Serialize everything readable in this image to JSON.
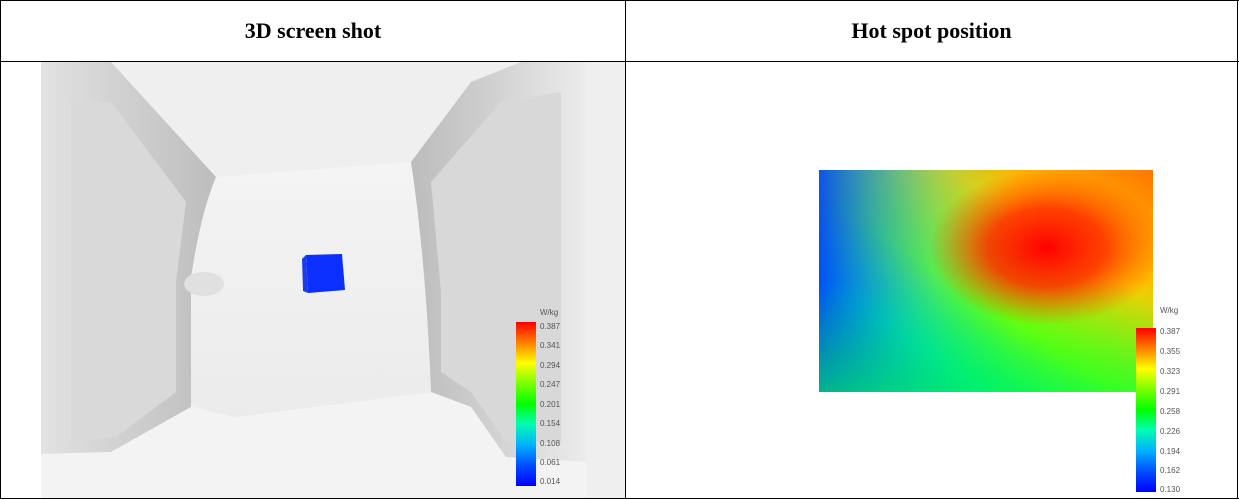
{
  "table": {
    "headers": [
      "3D screen shot",
      "Hot spot position"
    ]
  },
  "left_legend": {
    "unit": "W/kg",
    "ticks": [
      "0.387",
      "0.341",
      "0.294",
      "0.247",
      "0.201",
      "0.154",
      "0.108",
      "0.061",
      "0.014"
    ]
  },
  "right_legend": {
    "unit": "W/kg",
    "ticks": [
      "0.387",
      "0.355",
      "0.323",
      "0.291",
      "0.258",
      "0.226",
      "0.194",
      "0.162",
      "0.130"
    ]
  },
  "colors": {
    "scale": [
      "#ff0000",
      "#ff7a00",
      "#ffff00",
      "#7fff00",
      "#00ff00",
      "#00ffb0",
      "#00b0ff",
      "#0050ff",
      "#0000ff"
    ],
    "phantom_face": "#f0f0f0",
    "phantom_side": "#d6d6d6",
    "probe": "#0a2fff"
  }
}
